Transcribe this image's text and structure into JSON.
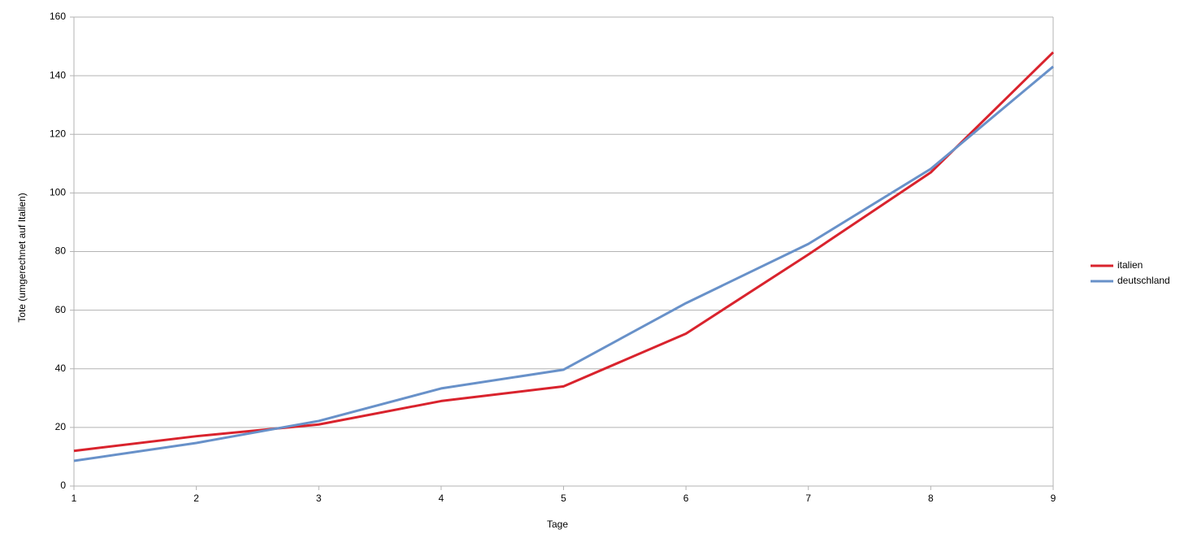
{
  "chart_data": {
    "type": "line",
    "x": [
      1,
      2,
      3,
      4,
      5,
      6,
      7,
      8,
      9
    ],
    "series": [
      {
        "name": "italien",
        "color": "#d9232d",
        "values": [
          12,
          17,
          21,
          29,
          34,
          52,
          79,
          107,
          148
        ]
      },
      {
        "name": "deutschland",
        "color": "#6891c9",
        "values": [
          8.6,
          14.7,
          22.2,
          33.3,
          39.7,
          62.4,
          82.6,
          108.2,
          143.1
        ]
      }
    ],
    "xlabel": "Tage",
    "ylabel": "Tote (umgerechnet auf Italien)",
    "xlim": [
      1,
      9
    ],
    "xticks": [
      1,
      2,
      3,
      4,
      5,
      6,
      7,
      8,
      9
    ],
    "ylim": [
      0,
      160
    ],
    "yticks": [
      0,
      20,
      40,
      60,
      80,
      100,
      120,
      140,
      160
    ],
    "grid": true,
    "legend": "right"
  }
}
